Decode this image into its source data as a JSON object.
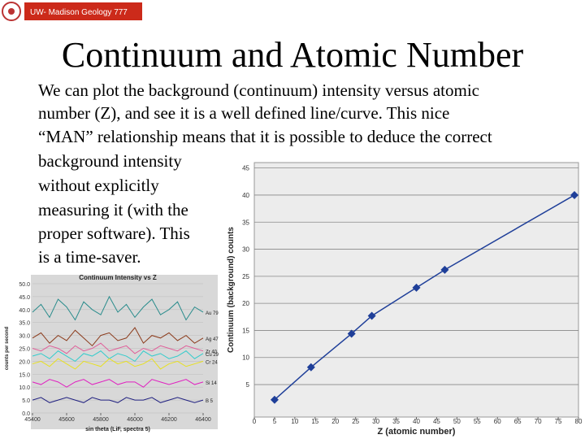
{
  "header": {
    "label": "UW- Madison Geology 777"
  },
  "title": "Continuum and Atomic Number",
  "body": [
    "We can plot the background (continuum) intensity versus atomic",
    "number (Z), and see it is a well defined line/curve. This nice",
    "“MAN” relationship means that it is possible to deduce the correct",
    "background intensity",
    "without explicitly",
    "measuring it (with the",
    "proper software). This",
    "is a time-saver."
  ],
  "chart_data": [
    {
      "type": "line",
      "x_label": "Z (atomic number)",
      "y_label": "Continuum (background) counts",
      "x": [
        5,
        14,
        24,
        29,
        40,
        47,
        79
      ],
      "series": [
        {
          "color": "#1f3f99",
          "values": [
            2.2,
            8.2,
            14.4,
            17.7,
            22.9,
            26.2,
            40.0
          ]
        }
      ],
      "xlim": [
        0,
        80
      ],
      "xticks": [
        0,
        5,
        10,
        15,
        20,
        25,
        30,
        35,
        40,
        45,
        50,
        55,
        60,
        65,
        70,
        75,
        80
      ],
      "ylim": [
        -1,
        46
      ],
      "yticks": [
        5,
        10,
        15,
        20,
        25,
        30,
        35,
        40,
        45
      ],
      "grid": true,
      "markers": true
    },
    {
      "type": "line",
      "title": "Continuum Intensity vs Z",
      "x_label": "sin theta (LiF, spectra 5)",
      "y_label": "counts per second",
      "x": [
        45400,
        45450,
        45500,
        45550,
        45600,
        45650,
        45700,
        45750,
        45800,
        45850,
        45900,
        45950,
        46000,
        46050,
        46100,
        46150,
        46200,
        46250,
        46300,
        46350,
        46400
      ],
      "series": [
        {
          "name": "Au 79",
          "color": "#2a8c8c",
          "values": [
            39,
            42,
            37,
            44,
            41,
            36,
            43,
            40,
            38,
            45,
            39,
            42,
            37,
            41,
            44,
            38,
            40,
            43,
            36,
            41,
            39
          ]
        },
        {
          "name": "Ag 47",
          "color": "#8b3a1a",
          "values": [
            29,
            31,
            27,
            30,
            28,
            32,
            29,
            26,
            30,
            31,
            28,
            29,
            33,
            27,
            30,
            29,
            31,
            28,
            30,
            27,
            29
          ]
        },
        {
          "name": "Zr 40",
          "color": "#e0609a",
          "values": [
            25,
            24,
            26,
            25,
            23,
            26,
            24,
            25,
            27,
            24,
            25,
            26,
            23,
            25,
            24,
            26,
            25,
            24,
            26,
            25,
            24
          ]
        },
        {
          "name": "Cu 29",
          "color": "#33cccc",
          "values": [
            22,
            23,
            21,
            24,
            22,
            20,
            23,
            22,
            24,
            21,
            23,
            22,
            20,
            24,
            22,
            23,
            21,
            22,
            24,
            21,
            23
          ]
        },
        {
          "name": "Cr 24",
          "color": "#e8e020",
          "values": [
            19,
            20,
            18,
            21,
            19,
            17,
            20,
            19,
            18,
            21,
            19,
            20,
            18,
            19,
            21,
            17,
            19,
            20,
            18,
            19,
            20
          ]
        },
        {
          "name": "Si 14",
          "color": "#e020c0",
          "values": [
            12,
            11,
            13,
            12,
            10,
            12,
            13,
            11,
            12,
            13,
            11,
            12,
            12,
            10,
            13,
            12,
            11,
            12,
            13,
            11,
            12
          ]
        },
        {
          "name": "B 5",
          "color": "#202080",
          "values": [
            5,
            6,
            4,
            5,
            6,
            5,
            4,
            6,
            5,
            5,
            4,
            6,
            5,
            5,
            6,
            4,
            5,
            6,
            5,
            4,
            5
          ]
        }
      ],
      "xlim": [
        45400,
        46400
      ],
      "xticks": [
        45400,
        45600,
        45800,
        46000,
        46200,
        46400
      ],
      "ylim": [
        0,
        50
      ],
      "yticks": [
        {
          "value": 0,
          "label": "0.0"
        },
        {
          "value": 5,
          "label": "5.0"
        },
        {
          "value": 10,
          "label": "10.0"
        },
        {
          "value": 15,
          "label": "15.0"
        },
        {
          "value": 20,
          "label": "20.0"
        },
        {
          "value": 25,
          "label": "25.0"
        },
        {
          "value": 30,
          "label": "30.0"
        },
        {
          "value": 35,
          "label": "35.0"
        },
        {
          "value": 40,
          "label": "40.0"
        },
        {
          "value": 45,
          "label": "45.0"
        },
        {
          "value": 50,
          "label": "50.0"
        }
      ],
      "grid": true,
      "markers": false
    }
  ]
}
